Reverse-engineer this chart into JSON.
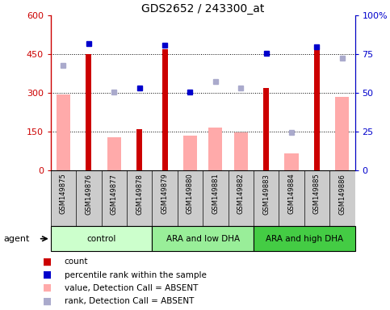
{
  "title": "GDS2652 / 243300_at",
  "samples": [
    "GSM149875",
    "GSM149876",
    "GSM149877",
    "GSM149878",
    "GSM149879",
    "GSM149880",
    "GSM149881",
    "GSM149882",
    "GSM149883",
    "GSM149884",
    "GSM149885",
    "GSM149886"
  ],
  "groups": [
    {
      "label": "control",
      "start": 0,
      "end": 4,
      "color": "#ccffcc"
    },
    {
      "label": "ARA and low DHA",
      "start": 4,
      "end": 8,
      "color": "#99ee99"
    },
    {
      "label": "ARA and high DHA",
      "start": 8,
      "end": 12,
      "color": "#44cc44"
    }
  ],
  "count_values": [
    null,
    452,
    null,
    160,
    470,
    null,
    null,
    null,
    320,
    null,
    472,
    null
  ],
  "absent_value_bars": [
    295,
    null,
    130,
    null,
    null,
    135,
    165,
    148,
    null,
    65,
    null,
    285
  ],
  "percentile_rank_dots": [
    null,
    490,
    null,
    320,
    485,
    305,
    null,
    null,
    455,
    null,
    480,
    null
  ],
  "absent_rank_dots": [
    408,
    null,
    305,
    null,
    null,
    null,
    345,
    320,
    null,
    148,
    null,
    435
  ],
  "ylim_left": [
    0,
    600
  ],
  "ylim_right": [
    0,
    100
  ],
  "yticks_left": [
    0,
    150,
    300,
    450,
    600
  ],
  "ytick_labels_left": [
    "0",
    "150",
    "300",
    "450",
    "600"
  ],
  "yticks_right": [
    0,
    25,
    50,
    75,
    100
  ],
  "ytick_labels_right": [
    "0",
    "25",
    "50",
    "75",
    "100%"
  ],
  "hlines": [
    150,
    300,
    450
  ],
  "left_axis_color": "#cc0000",
  "right_axis_color": "#0000cc",
  "absent_bar_color": "#ffaaaa",
  "absent_rank_color": "#aaaacc",
  "count_color": "#cc0000",
  "rank_color": "#0000cc",
  "tick_area_bg": "#cccccc",
  "group_colors": [
    "#ccffcc",
    "#99ee99",
    "#44cc44"
  ]
}
